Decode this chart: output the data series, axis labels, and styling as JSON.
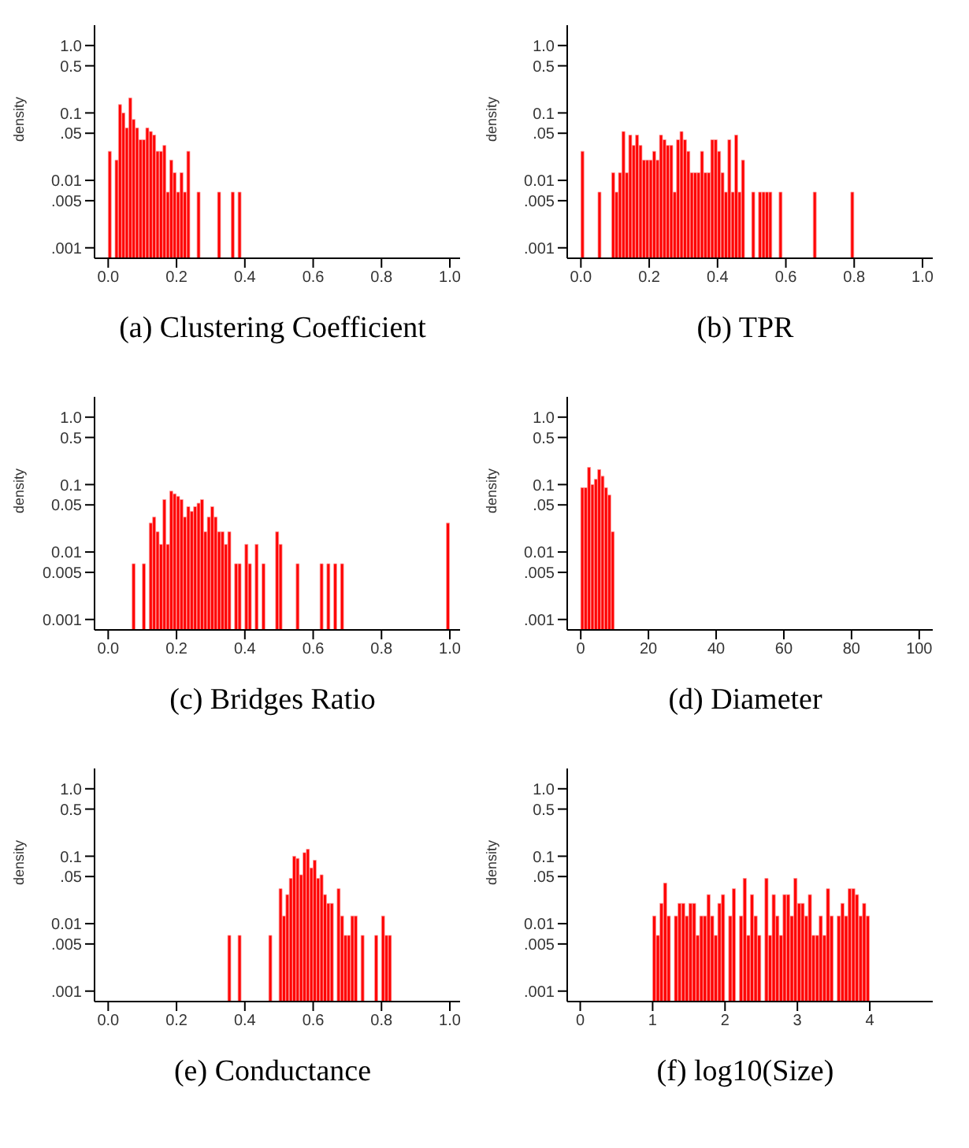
{
  "chart_data": [
    {
      "type": "histogram",
      "title": "(a) Clustering Coefficient",
      "ylabel": "density",
      "color": "#ff0000",
      "log": true,
      "bins": [
        0,
        0.01,
        0.02,
        0.03,
        0.04,
        0.05,
        0.06,
        0.07,
        0.08,
        0.09,
        0.1,
        0.11,
        0.12,
        0.13,
        0.14,
        0.15,
        0.16,
        0.17,
        0.18,
        0.19,
        0.2,
        0.21,
        0.22,
        0.23,
        0.24,
        0.25,
        0.26,
        0.27,
        0.28,
        0.29,
        0.3,
        0.31,
        0.32,
        0.33,
        0.34,
        0.35,
        0.36,
        0.37,
        0.38,
        0.39
      ],
      "values": [
        0.027,
        null,
        0.02,
        0.133,
        0.1,
        0.06,
        0.167,
        0.08,
        0.06,
        0.04,
        0.04,
        0.06,
        0.053,
        0.047,
        0.027,
        0.027,
        0.033,
        0.0067,
        0.02,
        0.013,
        0.0067,
        0.013,
        0.0067,
        0.027,
        null,
        null,
        0.0067,
        null,
        null,
        null,
        null,
        null,
        0.0067,
        null,
        null,
        null,
        0.0067,
        null,
        0.0067
      ],
      "xlim": [
        -0.04,
        1.03
      ],
      "xticks": [
        {
          "value": 0,
          "label": "0.0"
        },
        {
          "value": 0.2,
          "label": "0.2"
        },
        {
          "value": 0.4,
          "label": "0.4"
        },
        {
          "value": 0.6,
          "label": "0.6"
        },
        {
          "value": 0.8,
          "label": "0.8"
        },
        {
          "value": 1,
          "label": "1.0"
        }
      ],
      "ylim": [
        0.0007,
        2
      ],
      "yticks": [
        {
          "value": 0.001,
          "label": ".001"
        },
        {
          "value": 0.005,
          "label": ".005"
        },
        {
          "value": 0.01,
          "label": "0.01"
        },
        {
          "value": 0.05,
          "label": ".05"
        },
        {
          "value": 0.1,
          "label": "0.1"
        },
        {
          "value": 0.5,
          "label": "0.5"
        },
        {
          "value": 1,
          "label": "1.0"
        }
      ]
    },
    {
      "type": "histogram",
      "title": "(b) TPR",
      "ylabel": "density",
      "color": "#ff0000",
      "log": true,
      "bins": [
        0,
        0.01,
        0.02,
        0.03,
        0.04,
        0.05,
        0.06,
        0.07,
        0.08,
        0.09,
        0.1,
        0.11,
        0.12,
        0.13,
        0.14,
        0.15,
        0.16,
        0.17,
        0.18,
        0.19,
        0.2,
        0.21,
        0.22,
        0.23,
        0.24,
        0.25,
        0.26,
        0.27,
        0.28,
        0.29,
        0.3,
        0.31,
        0.32,
        0.33,
        0.34,
        0.35,
        0.36,
        0.37,
        0.38,
        0.39,
        0.4,
        0.41,
        0.42,
        0.43,
        0.44,
        0.45,
        0.46,
        0.47,
        0.48,
        0.49,
        0.5,
        0.51,
        0.52,
        0.53,
        0.54,
        0.55,
        0.56,
        0.57,
        0.58,
        0.59,
        0.6,
        0.61,
        0.62,
        0.63,
        0.64,
        0.65,
        0.66,
        0.67,
        0.68,
        0.69,
        0.7,
        0.71,
        0.72,
        0.73,
        0.74,
        0.75,
        0.76,
        0.77,
        0.78,
        0.79,
        0.8
      ],
      "values": [
        0.027,
        null,
        null,
        null,
        null,
        0.0067,
        null,
        null,
        null,
        0.013,
        0.0067,
        0.013,
        0.053,
        0.013,
        0.047,
        0.033,
        0.047,
        0.033,
        0.02,
        0.02,
        0.02,
        0.027,
        0.02,
        0.047,
        0.04,
        0.033,
        0.033,
        0.0067,
        0.04,
        0.053,
        0.04,
        0.027,
        0.013,
        0.013,
        0.013,
        0.027,
        0.013,
        0.013,
        0.04,
        0.04,
        0.027,
        0.013,
        0.0067,
        0.04,
        0.0067,
        0.047,
        0.0067,
        0.02,
        null,
        null,
        0.0067,
        null,
        0.0067,
        0.0067,
        0.0067,
        0.0067,
        null,
        null,
        0.0067,
        null,
        null,
        null,
        null,
        null,
        null,
        null,
        null,
        null,
        0.0067,
        null,
        null,
        null,
        null,
        null,
        null,
        null,
        null,
        null,
        null,
        0.0067
      ],
      "xlim": [
        -0.04,
        1.03
      ],
      "xticks": [
        {
          "value": 0,
          "label": "0.0"
        },
        {
          "value": 0.2,
          "label": "0.2"
        },
        {
          "value": 0.4,
          "label": "0.4"
        },
        {
          "value": 0.6,
          "label": "0.6"
        },
        {
          "value": 0.8,
          "label": "0.8"
        },
        {
          "value": 1,
          "label": "1.0"
        }
      ],
      "ylim": [
        0.0007,
        2
      ],
      "yticks": [
        {
          "value": 0.001,
          "label": ".001"
        },
        {
          "value": 0.005,
          "label": ".005"
        },
        {
          "value": 0.01,
          "label": "0.01"
        },
        {
          "value": 0.05,
          "label": ".05"
        },
        {
          "value": 0.1,
          "label": "0.1"
        },
        {
          "value": 0.5,
          "label": "0.5"
        },
        {
          "value": 1,
          "label": "1.0"
        }
      ]
    },
    {
      "type": "histogram",
      "title": "(c) Bridges Ratio",
      "ylabel": "density",
      "color": "#ff0000",
      "log": true,
      "bins": [
        0.07,
        0.08,
        0.09,
        0.1,
        0.11,
        0.12,
        0.13,
        0.14,
        0.15,
        0.16,
        0.17,
        0.18,
        0.19,
        0.2,
        0.21,
        0.22,
        0.23,
        0.24,
        0.25,
        0.26,
        0.27,
        0.28,
        0.29,
        0.3,
        0.31,
        0.32,
        0.33,
        0.34,
        0.35,
        0.36,
        0.37,
        0.38,
        0.39,
        0.4,
        0.41,
        0.42,
        0.43,
        0.44,
        0.45,
        0.46,
        0.47,
        0.48,
        0.49,
        0.5,
        0.51,
        0.52,
        0.53,
        0.54,
        0.55,
        0.56,
        0.57,
        0.58,
        0.59,
        0.6,
        0.61,
        0.62,
        0.63,
        0.64,
        0.65,
        0.66,
        0.67,
        0.68,
        0.69,
        0.7,
        0.71,
        0.72,
        0.73,
        0.74,
        0.75,
        0.76,
        0.77,
        0.78,
        0.79,
        0.8,
        0.81,
        0.82,
        0.83,
        0.84,
        0.85,
        0.86,
        0.87,
        0.88,
        0.89,
        0.9,
        0.91,
        0.92,
        0.93,
        0.94,
        0.95,
        0.96,
        0.97,
        0.98,
        0.99,
        1
      ],
      "values": [
        0.0067,
        null,
        null,
        0.0067,
        null,
        0.027,
        0.033,
        0.02,
        0.013,
        0.06,
        0.013,
        0.08,
        0.073,
        0.067,
        0.06,
        0.033,
        0.047,
        0.04,
        0.047,
        0.053,
        0.06,
        0.02,
        0.033,
        0.047,
        0.033,
        0.02,
        0.02,
        0.013,
        0.02,
        null,
        0.0067,
        0.0067,
        null,
        0.013,
        0.0067,
        null,
        0.013,
        null,
        0.0067,
        null,
        null,
        null,
        0.02,
        0.013,
        null,
        null,
        null,
        null,
        0.0067,
        null,
        null,
        null,
        null,
        null,
        null,
        0.0067,
        null,
        0.0067,
        null,
        0.0067,
        null,
        0.0067,
        null,
        null,
        null,
        null,
        null,
        null,
        null,
        null,
        null,
        null,
        null,
        null,
        null,
        null,
        null,
        null,
        null,
        null,
        null,
        null,
        null,
        null,
        null,
        null,
        null,
        null,
        null,
        null,
        null,
        null,
        0.027
      ],
      "xlim": [
        -0.04,
        1.03
      ],
      "xticks": [
        {
          "value": 0,
          "label": "0.0"
        },
        {
          "value": 0.2,
          "label": "0.2"
        },
        {
          "value": 0.4,
          "label": "0.4"
        },
        {
          "value": 0.6,
          "label": "0.6"
        },
        {
          "value": 0.8,
          "label": "0.8"
        },
        {
          "value": 1,
          "label": "1.0"
        }
      ],
      "ylim": [
        0.0007,
        2
      ],
      "yticks": [
        {
          "value": 0.001,
          "label": "0.001"
        },
        {
          "value": 0.005,
          "label": "0.005"
        },
        {
          "value": 0.01,
          "label": "0.01"
        },
        {
          "value": 0.05,
          "label": "0.05"
        },
        {
          "value": 0.1,
          "label": "0.1"
        },
        {
          "value": 0.5,
          "label": "0.5"
        },
        {
          "value": 1,
          "label": "1.0"
        }
      ]
    },
    {
      "type": "histogram",
      "title": "(d) Diameter",
      "ylabel": "density",
      "color": "#ff0000",
      "log": true,
      "bins": [
        0,
        1,
        2,
        3,
        4,
        5,
        6,
        7,
        8,
        9,
        10
      ],
      "values": [
        0.09,
        0.09,
        0.18,
        0.1,
        0.12,
        0.167,
        0.133,
        0.09,
        0.07,
        0.02
      ],
      "xlim": [
        -4,
        104
      ],
      "xticks": [
        0,
        20,
        40,
        60,
        80,
        100
      ],
      "ylim": [
        0.0007,
        2
      ],
      "yticks": [
        {
          "value": 0.001,
          "label": ".001"
        },
        {
          "value": 0.005,
          "label": ".005"
        },
        {
          "value": 0.01,
          "label": "0.01"
        },
        {
          "value": 0.05,
          "label": ".05"
        },
        {
          "value": 0.1,
          "label": "0.1"
        },
        {
          "value": 0.5,
          "label": "0.5"
        },
        {
          "value": 1,
          "label": "1.0"
        }
      ]
    },
    {
      "type": "histogram",
      "title": "(e) Conductance",
      "ylabel": "density",
      "color": "#ff0000",
      "log": true,
      "bins": [
        0.35,
        0.36,
        0.37,
        0.38,
        0.39,
        0.4,
        0.41,
        0.42,
        0.43,
        0.44,
        0.45,
        0.46,
        0.47,
        0.48,
        0.49,
        0.5,
        0.51,
        0.52,
        0.53,
        0.54,
        0.55,
        0.56,
        0.57,
        0.58,
        0.59,
        0.6,
        0.61,
        0.62,
        0.63,
        0.64,
        0.65,
        0.66,
        0.67,
        0.68,
        0.69,
        0.7,
        0.71,
        0.72,
        0.73,
        0.74,
        0.75,
        0.76,
        0.77,
        0.78,
        0.79,
        0.8,
        0.81,
        0.82,
        0.83
      ],
      "values": [
        0.0067,
        null,
        null,
        0.0067,
        null,
        null,
        null,
        null,
        null,
        null,
        null,
        null,
        0.0067,
        null,
        null,
        0.033,
        0.013,
        0.027,
        0.047,
        0.1,
        0.093,
        0.053,
        0.113,
        0.127,
        0.067,
        0.087,
        0.047,
        0.053,
        0.027,
        0.02,
        0.02,
        null,
        0.033,
        0.013,
        0.0067,
        0.0067,
        0.013,
        0.013,
        null,
        0.0067,
        null,
        null,
        null,
        0.0067,
        null,
        0.013,
        0.0067,
        0.0067
      ],
      "xlim": [
        -0.04,
        1.03
      ],
      "xticks": [
        {
          "value": 0,
          "label": "0.0"
        },
        {
          "value": 0.2,
          "label": "0.2"
        },
        {
          "value": 0.4,
          "label": "0.4"
        },
        {
          "value": 0.6,
          "label": "0.6"
        },
        {
          "value": 0.8,
          "label": "0.8"
        },
        {
          "value": 1,
          "label": "1.0"
        }
      ],
      "ylim": [
        0.0007,
        2
      ],
      "yticks": [
        {
          "value": 0.001,
          "label": ".001"
        },
        {
          "value": 0.005,
          "label": ".005"
        },
        {
          "value": 0.01,
          "label": "0.01"
        },
        {
          "value": 0.05,
          "label": ".05"
        },
        {
          "value": 0.1,
          "label": "0.1"
        },
        {
          "value": 0.5,
          "label": "0.5"
        },
        {
          "value": 1,
          "label": "1.0"
        }
      ]
    },
    {
      "type": "histogram",
      "title": "(f) log10(Size)",
      "ylabel": "density",
      "color": "#ff0000",
      "log": true,
      "bins": [
        1,
        1.05,
        1.1,
        1.15,
        1.2,
        1.25,
        1.3,
        1.35,
        1.4,
        1.45,
        1.5,
        1.55,
        1.6,
        1.65,
        1.7,
        1.75,
        1.8,
        1.85,
        1.9,
        1.95,
        2,
        2.05,
        2.1,
        2.15,
        2.2,
        2.25,
        2.3,
        2.35,
        2.4,
        2.45,
        2.5,
        2.55,
        2.6,
        2.65,
        2.7,
        2.75,
        2.8,
        2.85,
        2.9,
        2.95,
        3,
        3.05,
        3.1,
        3.15,
        3.2,
        3.25,
        3.3,
        3.35,
        3.4,
        3.45,
        3.5,
        3.55,
        3.6,
        3.65,
        3.7,
        3.75,
        3.8,
        3.85,
        3.9,
        3.95,
        4
      ],
      "values": [
        0.013,
        0.0067,
        0.02,
        0.04,
        0.013,
        null,
        0.013,
        0.02,
        0.02,
        0.013,
        0.02,
        0.02,
        0.0067,
        0.013,
        0.013,
        0.027,
        0.013,
        0.0067,
        0.02,
        0.027,
        null,
        0.013,
        0.033,
        null,
        0.013,
        0.047,
        0.0067,
        0.027,
        0.013,
        0.0067,
        null,
        0.047,
        0.0067,
        0.027,
        0.013,
        0.0067,
        0.027,
        0.027,
        0.013,
        0.047,
        0.02,
        0.02,
        0.013,
        0.027,
        0.0067,
        0.0067,
        0.013,
        0.0067,
        0.033,
        0.013,
        null,
        0.013,
        0.02,
        0.013,
        0.033,
        0.033,
        0.027,
        0.013,
        0.02,
        0.013
      ],
      "xlim": [
        -0.18,
        4.87
      ],
      "xticks": [
        0,
        1,
        2,
        3,
        4
      ],
      "ylim": [
        0.0007,
        2
      ],
      "yticks": [
        {
          "value": 0.001,
          "label": ".001"
        },
        {
          "value": 0.005,
          "label": ".005"
        },
        {
          "value": 0.01,
          "label": "0.01"
        },
        {
          "value": 0.05,
          "label": ".05"
        },
        {
          "value": 0.1,
          "label": "0.1"
        },
        {
          "value": 0.5,
          "label": "0.5"
        },
        {
          "value": 1,
          "label": "1.0"
        }
      ]
    }
  ]
}
